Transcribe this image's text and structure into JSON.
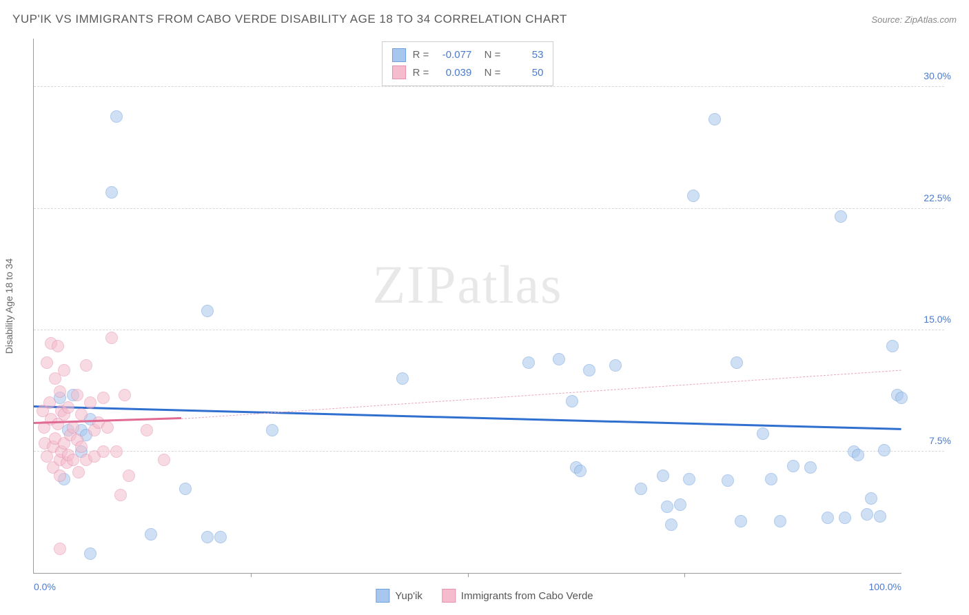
{
  "title": "YUP'IK VS IMMIGRANTS FROM CABO VERDE DISABILITY AGE 18 TO 34 CORRELATION CHART",
  "source": "Source: ZipAtlas.com",
  "y_axis_label": "Disability Age 18 to 34",
  "watermark": "ZIPatlas",
  "chart": {
    "type": "scatter",
    "xlim": [
      0,
      100
    ],
    "ylim": [
      0,
      33
    ],
    "x_ticks": [
      0,
      25,
      50,
      75,
      100
    ],
    "x_tick_labels": [
      "0.0%",
      "",
      "",
      "",
      "100.0%"
    ],
    "y_ticks": [
      7.5,
      15.0,
      22.5,
      30.0
    ],
    "y_tick_labels": [
      "7.5%",
      "15.0%",
      "22.5%",
      "30.0%"
    ],
    "background_color": "#ffffff",
    "grid_color": "#d8d8d8",
    "axis_color": "#999999",
    "tick_label_color": "#4a7bd0",
    "marker_radius": 9,
    "marker_opacity": 0.55,
    "series": [
      {
        "name": "Yup'ik",
        "color_fill": "#a9c7ee",
        "color_stroke": "#6f9fdd",
        "r_value": "-0.077",
        "n_value": "53",
        "trend": {
          "x1": 0,
          "y1": 10.2,
          "x2": 100,
          "y2": 8.8,
          "color": "#2f6fd0",
          "width": 3,
          "dash": false
        },
        "points": [
          [
            9.5,
            28.2
          ],
          [
            9.0,
            23.5
          ],
          [
            20.0,
            16.2
          ],
          [
            6.5,
            1.2
          ],
          [
            13.5,
            2.4
          ],
          [
            17.5,
            5.2
          ],
          [
            20.0,
            2.2
          ],
          [
            21.5,
            2.2
          ],
          [
            3.0,
            10.8
          ],
          [
            4.0,
            8.8
          ],
          [
            4.5,
            11.0
          ],
          [
            5.5,
            8.8
          ],
          [
            6.0,
            8.5
          ],
          [
            6.5,
            9.5
          ],
          [
            3.5,
            5.8
          ],
          [
            5.5,
            7.5
          ],
          [
            27.5,
            8.8
          ],
          [
            42.5,
            12.0
          ],
          [
            57.0,
            13.0
          ],
          [
            60.5,
            13.2
          ],
          [
            62.0,
            10.6
          ],
          [
            62.5,
            6.5
          ],
          [
            63.0,
            6.3
          ],
          [
            64.0,
            12.5
          ],
          [
            67.0,
            12.8
          ],
          [
            70.0,
            5.2
          ],
          [
            72.5,
            6.0
          ],
          [
            73.0,
            4.1
          ],
          [
            73.5,
            3.0
          ],
          [
            74.5,
            4.2
          ],
          [
            75.5,
            5.8
          ],
          [
            76.0,
            23.3
          ],
          [
            78.5,
            28.0
          ],
          [
            80.0,
            5.7
          ],
          [
            81.0,
            13.0
          ],
          [
            81.5,
            3.2
          ],
          [
            84.0,
            8.6
          ],
          [
            85.0,
            5.8
          ],
          [
            86.0,
            3.2
          ],
          [
            87.5,
            6.6
          ],
          [
            89.5,
            6.5
          ],
          [
            91.5,
            3.4
          ],
          [
            93.0,
            22.0
          ],
          [
            93.5,
            3.4
          ],
          [
            94.5,
            7.5
          ],
          [
            95.0,
            7.3
          ],
          [
            96.0,
            3.6
          ],
          [
            96.5,
            4.6
          ],
          [
            97.5,
            3.5
          ],
          [
            98.0,
            7.6
          ],
          [
            99.0,
            14.0
          ],
          [
            99.5,
            11.0
          ],
          [
            100.0,
            10.8
          ]
        ]
      },
      {
        "name": "Immigrants from Cabo Verde",
        "color_fill": "#f4bccd",
        "color_stroke": "#e78fb0",
        "r_value": "0.039",
        "n_value": "50",
        "trend_solid": {
          "x1": 0,
          "y1": 9.2,
          "x2": 17,
          "y2": 9.5,
          "color": "#e06a94",
          "width": 3,
          "dash": false
        },
        "trend_dash": {
          "x1": 17,
          "y1": 9.5,
          "x2": 100,
          "y2": 12.5,
          "color": "#e9a8bd",
          "width": 1,
          "dash": true
        },
        "points": [
          [
            1.0,
            10.0
          ],
          [
            1.2,
            9.0
          ],
          [
            1.3,
            8.0
          ],
          [
            1.5,
            13.0
          ],
          [
            1.5,
            7.2
          ],
          [
            1.8,
            10.5
          ],
          [
            2.0,
            14.2
          ],
          [
            2.0,
            9.5
          ],
          [
            2.2,
            7.8
          ],
          [
            2.2,
            6.5
          ],
          [
            2.5,
            12.0
          ],
          [
            2.5,
            8.3
          ],
          [
            2.8,
            14.0
          ],
          [
            2.8,
            9.2
          ],
          [
            3.0,
            11.2
          ],
          [
            3.0,
            7.0
          ],
          [
            3.0,
            6.0
          ],
          [
            3.2,
            10.0
          ],
          [
            3.2,
            7.5
          ],
          [
            3.5,
            12.5
          ],
          [
            3.5,
            9.8
          ],
          [
            3.5,
            8.0
          ],
          [
            3.8,
            6.8
          ],
          [
            4.0,
            10.2
          ],
          [
            4.0,
            7.3
          ],
          [
            4.2,
            8.5
          ],
          [
            4.5,
            9.0
          ],
          [
            4.5,
            7.0
          ],
          [
            5.0,
            11.0
          ],
          [
            5.0,
            8.2
          ],
          [
            5.2,
            6.2
          ],
          [
            5.5,
            9.8
          ],
          [
            5.5,
            7.8
          ],
          [
            6.0,
            12.8
          ],
          [
            6.0,
            7.0
          ],
          [
            6.5,
            10.5
          ],
          [
            7.0,
            8.8
          ],
          [
            7.0,
            7.2
          ],
          [
            7.5,
            9.3
          ],
          [
            8.0,
            10.8
          ],
          [
            8.0,
            7.5
          ],
          [
            8.5,
            9.0
          ],
          [
            9.0,
            14.5
          ],
          [
            9.5,
            7.5
          ],
          [
            10.0,
            4.8
          ],
          [
            10.5,
            11.0
          ],
          [
            11.0,
            6.0
          ],
          [
            13.0,
            8.8
          ],
          [
            15.0,
            7.0
          ],
          [
            3.0,
            1.5
          ]
        ]
      }
    ]
  },
  "bottom_legend": [
    {
      "label": "Yup'ik",
      "fill": "#a9c7ee",
      "stroke": "#6f9fdd"
    },
    {
      "label": "Immigrants from Cabo Verde",
      "fill": "#f4bccd",
      "stroke": "#e78fb0"
    }
  ]
}
